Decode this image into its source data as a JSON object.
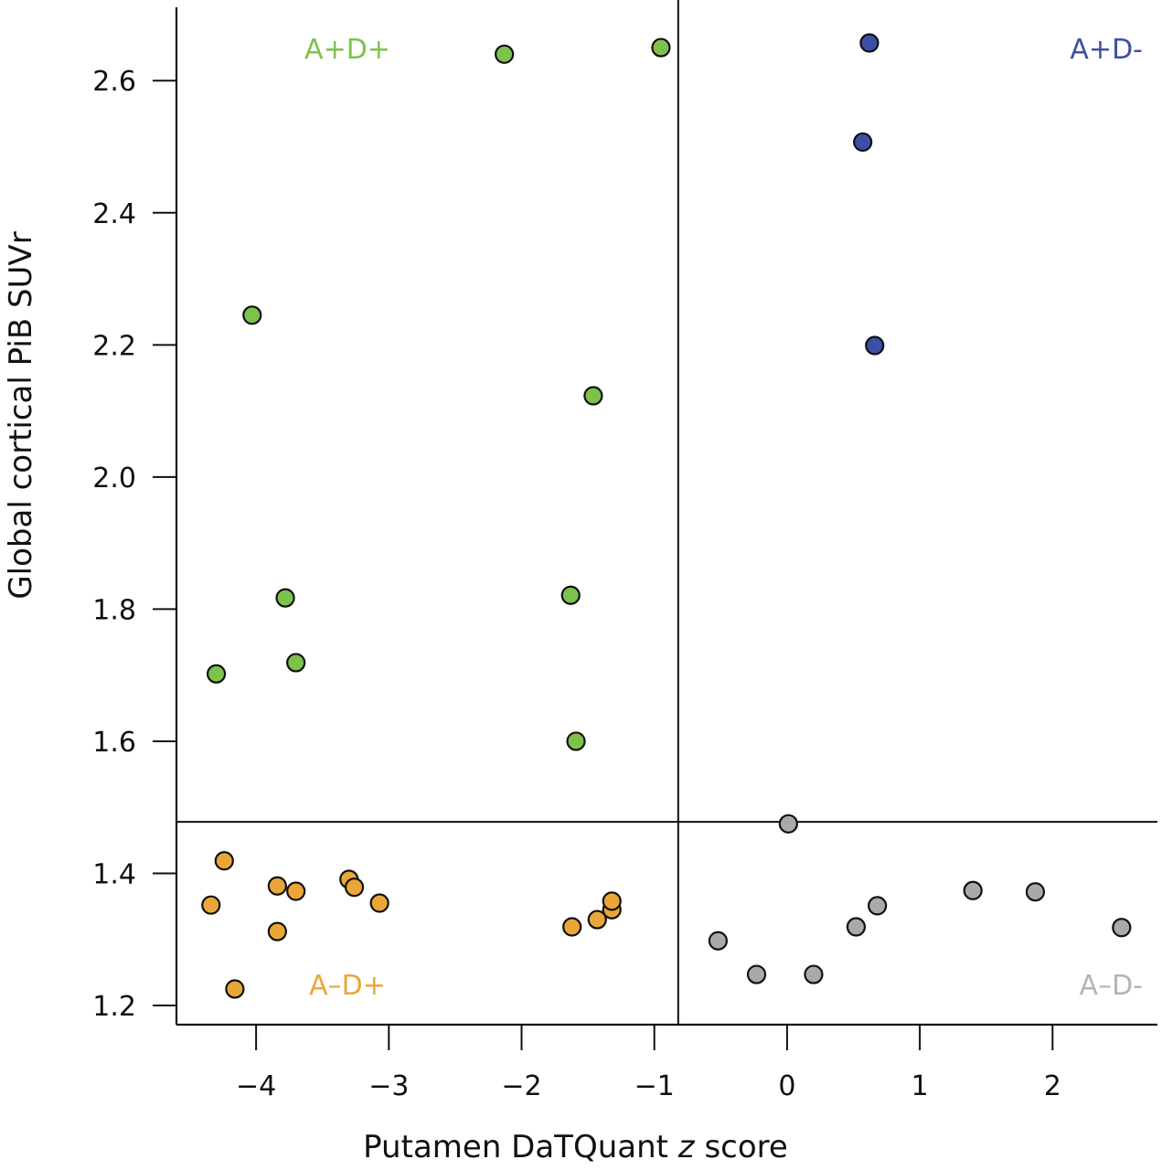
{
  "chart_data": {
    "type": "scatter",
    "title": "",
    "xlabel_parts": [
      {
        "text": "Putamen DaTQuant ",
        "italic": false
      },
      {
        "text": "z",
        "italic": true
      },
      {
        "text": " score",
        "italic": false
      }
    ],
    "xlabel": "Putamen DaTQuant z score",
    "ylabel": "Global cortical PiB SUVr",
    "xlim": [
      -4.6,
      2.79
    ],
    "ylim": [
      1.171,
      2.711
    ],
    "xticks": [
      -4,
      -3,
      -2,
      -1,
      0,
      1,
      2
    ],
    "xtick_labels": [
      "−4",
      "−3",
      "−2",
      "−1",
      "0",
      "1",
      "2"
    ],
    "yticks": [
      1.2,
      1.4,
      1.6,
      1.8,
      2.0,
      2.2,
      2.4,
      2.6
    ],
    "ytick_labels": [
      "1.2",
      "1.4",
      "1.6",
      "1.8",
      "2.0",
      "2.2",
      "2.4",
      "2.6"
    ],
    "grid": false,
    "thresholds": {
      "x": -0.82,
      "y": 1.478
    },
    "series": [
      {
        "name": "A+D+",
        "color": "#7dc24b",
        "label_position": "top-left",
        "points": [
          {
            "x": -2.13,
            "y": 2.64
          },
          {
            "x": -0.95,
            "y": 2.65
          },
          {
            "x": -4.03,
            "y": 2.245
          },
          {
            "x": -1.46,
            "y": 2.123
          },
          {
            "x": -3.78,
            "y": 1.817
          },
          {
            "x": -3.7,
            "y": 1.719
          },
          {
            "x": -4.3,
            "y": 1.702
          },
          {
            "x": -1.63,
            "y": 1.821
          },
          {
            "x": -1.59,
            "y": 1.6
          }
        ]
      },
      {
        "name": "A+D-",
        "color": "#3c4fa6",
        "label_position": "top-right",
        "points": [
          {
            "x": 0.62,
            "y": 2.657
          },
          {
            "x": 0.57,
            "y": 2.507
          },
          {
            "x": 0.66,
            "y": 2.199
          }
        ]
      },
      {
        "name": "A–D+",
        "color": "#eba638",
        "label_position": "bottom-left",
        "points": [
          {
            "x": -4.24,
            "y": 1.419
          },
          {
            "x": -4.34,
            "y": 1.352
          },
          {
            "x": -3.84,
            "y": 1.381
          },
          {
            "x": -3.7,
            "y": 1.373
          },
          {
            "x": -3.84,
            "y": 1.312
          },
          {
            "x": -4.16,
            "y": 1.225
          },
          {
            "x": -3.3,
            "y": 1.391
          },
          {
            "x": -3.26,
            "y": 1.379
          },
          {
            "x": -3.07,
            "y": 1.355
          },
          {
            "x": -1.62,
            "y": 1.319
          },
          {
            "x": -1.43,
            "y": 1.33
          },
          {
            "x": -1.32,
            "y": 1.345
          },
          {
            "x": -1.32,
            "y": 1.358
          }
        ]
      },
      {
        "name": "A–D-",
        "color": "#a9a9a9",
        "label_position": "bottom-right",
        "points": [
          {
            "x": 0.01,
            "y": 1.475
          },
          {
            "x": -0.52,
            "y": 1.298
          },
          {
            "x": -0.23,
            "y": 1.247
          },
          {
            "x": 0.2,
            "y": 1.247
          },
          {
            "x": 0.52,
            "y": 1.319
          },
          {
            "x": 0.68,
            "y": 1.351
          },
          {
            "x": 1.4,
            "y": 1.374
          },
          {
            "x": 1.87,
            "y": 1.372
          },
          {
            "x": 2.52,
            "y": 1.318
          }
        ]
      }
    ],
    "quadrant_label_colors": {
      "A+D+": "#7dc24b",
      "A+D-": "#3c4fa6",
      "A–D+": "#eba638",
      "A–D-": "#b4b4b4"
    }
  }
}
